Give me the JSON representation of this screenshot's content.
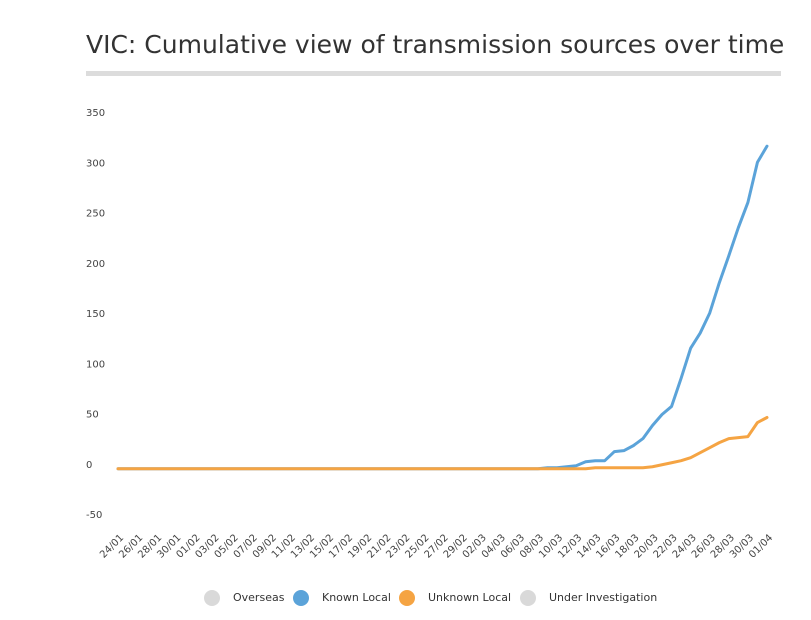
{
  "chart_data": {
    "type": "line",
    "title": "VIC: Cumulative view of transmission sources over time",
    "categories": [
      "24/01",
      null,
      "26/01",
      null,
      "28/01",
      null,
      "30/01",
      null,
      "01/02",
      null,
      "03/02",
      null,
      "05/02",
      null,
      "07/02",
      null,
      "09/02",
      null,
      "11/02",
      null,
      "13/02",
      null,
      "15/02",
      null,
      "17/02",
      null,
      "19/02",
      null,
      "21/02",
      null,
      "23/02",
      null,
      "25/02",
      null,
      "27/02",
      null,
      "29/02",
      null,
      "02/03",
      null,
      "04/03",
      null,
      "06/03",
      null,
      "08/03",
      null,
      "10/03",
      null,
      "12/03",
      null,
      "14/03",
      null,
      "16/03",
      null,
      "18/03",
      null,
      "20/03",
      null,
      "22/03",
      null,
      "24/03",
      null,
      "26/03",
      null,
      "28/03",
      null,
      "30/03",
      null,
      "01/04"
    ],
    "series": [
      {
        "name": "Overseas",
        "color": "#d9d9d9",
        "visible": false
      },
      {
        "name": "Known Local",
        "color": "#5ba3d9",
        "values": [
          0,
          0,
          0,
          0,
          0,
          0,
          0,
          0,
          0,
          0,
          0,
          0,
          0,
          0,
          0,
          0,
          0,
          0,
          0,
          0,
          0,
          0,
          0,
          0,
          0,
          0,
          0,
          0,
          0,
          0,
          0,
          0,
          0,
          0,
          0,
          0,
          0,
          0,
          0,
          0,
          0,
          0,
          0,
          0,
          0,
          1,
          1,
          2,
          3,
          7,
          8,
          8,
          17,
          18,
          23,
          30,
          43,
          54,
          62,
          90,
          120,
          135,
          155,
          185,
          212,
          240,
          265,
          305,
          321
        ]
      },
      {
        "name": "Unknown Local",
        "color": "#f5a443",
        "values": [
          0,
          0,
          0,
          0,
          0,
          0,
          0,
          0,
          0,
          0,
          0,
          0,
          0,
          0,
          0,
          0,
          0,
          0,
          0,
          0,
          0,
          0,
          0,
          0,
          0,
          0,
          0,
          0,
          0,
          0,
          0,
          0,
          0,
          0,
          0,
          0,
          0,
          0,
          0,
          0,
          0,
          0,
          0,
          0,
          0,
          0,
          0,
          0,
          0,
          0,
          1,
          1,
          1,
          1,
          1,
          1,
          2,
          4,
          6,
          8,
          11,
          16,
          21,
          26,
          30,
          31,
          32,
          46,
          51
        ]
      },
      {
        "name": "Under Investigation",
        "color": "#d9d9d9",
        "visible": false
      }
    ],
    "ylim": [
      -50,
      350
    ],
    "yticks": [
      -50,
      0,
      50,
      100,
      150,
      200,
      250,
      300,
      350
    ],
    "grid": false
  }
}
